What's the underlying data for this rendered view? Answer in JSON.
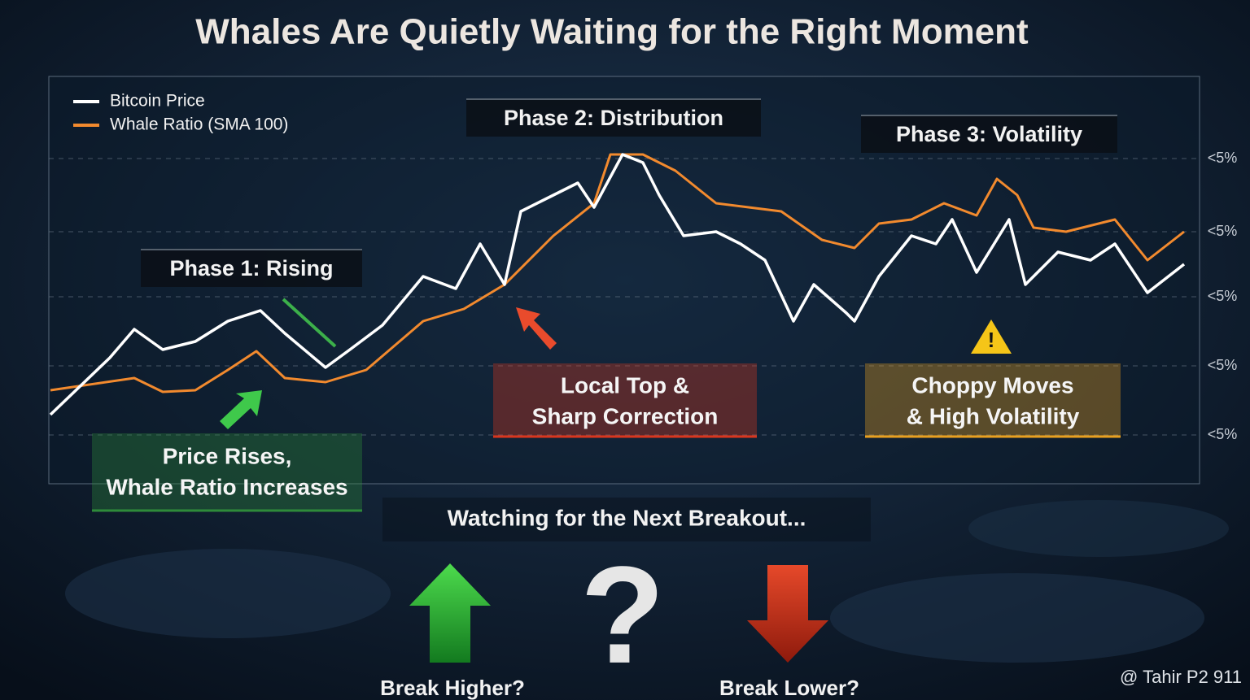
{
  "chart_data": {
    "type": "line",
    "title": "Whales Are Quietly Waiting for the Right Moment",
    "xlim": [
      0,
      140
    ],
    "ylim": [
      0,
      100
    ],
    "yticks": [
      {
        "value": 80,
        "label": "<5%"
      },
      {
        "value": 62,
        "label": "<5%"
      },
      {
        "value": 46,
        "label": "<5%"
      },
      {
        "value": 29,
        "label": "<5%"
      },
      {
        "value": 12,
        "label": "<5%"
      }
    ],
    "grid": true,
    "legend": "top-left",
    "series": [
      {
        "name": "Bitcoin Price",
        "color": "#ffffff",
        "x": [
          0,
          7.3,
          10.3,
          13.8,
          17.8,
          21.8,
          25.8,
          28.8,
          33.8,
          36.8,
          40.8,
          45.8,
          49.8,
          52.8,
          55.8,
          57.8,
          61.8,
          64.8,
          66.8,
          70.3,
          72.8,
          74.8,
          77.8,
          81.8,
          84.8,
          87.8,
          91.3,
          93.8,
          97.8,
          98.8,
          101.8,
          105.8,
          108.8,
          110.8,
          113.8,
          117.8,
          119.8,
          123.8,
          127.8,
          130.8,
          134.8,
          139.3
        ],
        "values": [
          17,
          31,
          38,
          33,
          35,
          40,
          42.6,
          37,
          28.6,
          33,
          39,
          51,
          48,
          59,
          49,
          67,
          71,
          74,
          68,
          81,
          79,
          71,
          61,
          62,
          59,
          55,
          40,
          49,
          42,
          40,
          51,
          61,
          59,
          65,
          52,
          65,
          49,
          57,
          55,
          59,
          47,
          54
        ]
      },
      {
        "name": "Whale Ratio (SMA 100)",
        "color": "#f28a2e",
        "x": [
          0,
          10.3,
          13.8,
          17.8,
          21.8,
          25.3,
          28.8,
          33.8,
          38.8,
          45.8,
          50.8,
          55.8,
          61.8,
          66.8,
          68.8,
          72.8,
          76.8,
          81.8,
          89.8,
          94.8,
          98.8,
          101.8,
          105.8,
          109.8,
          113.8,
          116.3,
          118.8,
          120.8,
          124.8,
          130.8,
          134.8,
          139.3
        ],
        "values": [
          23,
          26,
          22.6,
          23,
          28,
          32.6,
          26,
          25,
          28,
          40,
          43,
          49,
          61,
          69,
          81,
          81,
          77,
          69,
          67,
          60,
          58,
          64,
          65,
          69,
          66,
          75,
          71,
          63,
          62,
          65,
          55,
          62
        ]
      }
    ],
    "annotations": {
      "phases": [
        "Phase 1: Rising",
        "Phase 2: Distribution",
        "Phase 3: Volatility"
      ],
      "callouts": [
        {
          "lines": [
            "Price Rises,",
            "Whale Ratio Increases"
          ],
          "color": "#2e8b3a"
        },
        {
          "lines": [
            "Local Top &",
            "Sharp Correction"
          ],
          "color": "#d9361e"
        },
        {
          "lines": [
            "Choppy Moves",
            "& High Volatility"
          ],
          "color": "#e8a020"
        }
      ],
      "watch": "Watching for the Next Breakout...",
      "options": [
        "Break Higher?",
        "?",
        "Break Lower?"
      ],
      "watermark": "@ Tahir P2 911"
    }
  }
}
